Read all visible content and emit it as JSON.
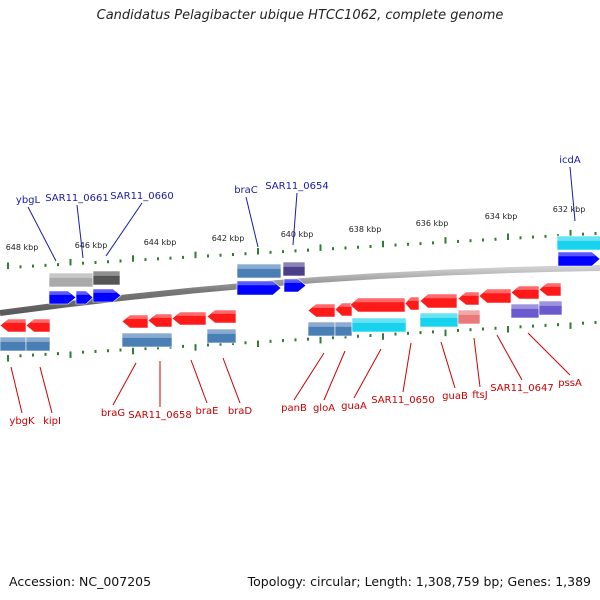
{
  "title": "Candidatus Pelagibacter ubique HTCC1062, complete genome",
  "accession": "Accession: NC_007205",
  "topology": "Topology: circular; Length: 1,308,759 bp; Genes: 1,389",
  "colors": {
    "forward_label": "#1a1aa6",
    "reverse_label": "#cc0000",
    "tick": "#2e7d32",
    "backbone": "#8a8a8a",
    "forward_gene": "#0000ff",
    "reverse_gene": "#ff1a1a",
    "cog_steel": "#4a7fb5",
    "cog_cyan": "#17d3ee",
    "cog_purple": "#6a5acd",
    "cog_indigo": "#4b3f8c",
    "cog_gray": "#aaaaaa",
    "cog_darkgray": "#555555",
    "cog_pink": "#ea7a7a"
  },
  "kbp_labels": [
    "648 kbp",
    "646 kbp",
    "644 kbp",
    "642 kbp",
    "640 kbp",
    "638 kbp",
    "636 kbp",
    "634 kbp",
    "632 kbp"
  ],
  "forward_genes": [
    "ybgL",
    "SAR11_0661",
    "SAR11_0660",
    "braC",
    "SAR11_0654",
    "icdA"
  ],
  "reverse_genes": [
    "ybgK",
    "kipI",
    "braG",
    "SAR11_0658",
    "braE",
    "braD",
    "panB",
    "gloA",
    "guaA",
    "SAR11_0650",
    "guaB",
    "ftsJ",
    "SAR11_0647",
    "pssA"
  ]
}
